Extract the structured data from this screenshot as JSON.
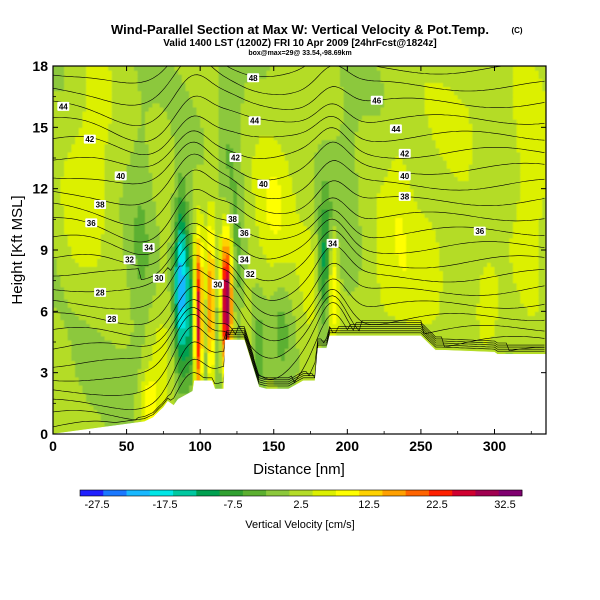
{
  "chart_data": {
    "type": "heatmap",
    "title": "Wind-Parallel Section at Max W: Vertical Velocity & Pot.Temp.",
    "title_mark": "(C)",
    "subtitle": "Valid 1400 LST (1200Z) FRI 10 Apr 2009 [24hrFcst@1824z]",
    "location_line": "box@max=29@ 33.54,-98.69km",
    "xlabel": "Distance [nm]",
    "ylabel": "Height [Kft MSL]",
    "xlim": [
      0,
      335
    ],
    "ylim": [
      0,
      18
    ],
    "x_ticks": [
      0,
      50,
      100,
      150,
      200,
      250,
      300
    ],
    "y_ticks": [
      0,
      3,
      6,
      9,
      12,
      15,
      18
    ],
    "colorbar": {
      "label": "Vertical Velocity [cm/s]",
      "range": [
        -30,
        35
      ],
      "tick_values": [
        -27.5,
        -17.5,
        -7.5,
        2.5,
        12.5,
        22.5,
        32.5
      ],
      "tick_labels": [
        "-27.5",
        "-17.5",
        "-7.5",
        "2.5",
        "12.5",
        "22.5",
        "32.5"
      ],
      "colors": [
        "#2020ff",
        "#1a78ff",
        "#18b8ff",
        "#00e6e6",
        "#00c8a0",
        "#00a050",
        "#30a030",
        "#5cb030",
        "#8cc83c",
        "#b4dc28",
        "#dcf000",
        "#ffff00",
        "#ffd200",
        "#ffa000",
        "#ff6400",
        "#ff2000",
        "#d00030",
        "#a00050",
        "#800070"
      ]
    },
    "terrain": {
      "x": [
        0,
        62,
        68,
        72,
        75,
        78,
        82,
        85,
        90,
        95,
        96,
        108,
        110,
        116,
        117,
        125,
        130,
        140,
        145,
        160,
        170,
        178,
        180,
        186,
        188,
        195,
        205,
        250,
        260,
        265,
        300,
        302,
        335
      ],
      "y": [
        0,
        0.6,
        0.8,
        1.1,
        1.3,
        1.6,
        1.4,
        1.7,
        1.9,
        2.1,
        2.6,
        2.6,
        2.2,
        2.2,
        4.6,
        4.6,
        4.6,
        2.3,
        2.2,
        2.2,
        2.6,
        2.6,
        4.2,
        4.2,
        4.8,
        4.8,
        4.8,
        4.8,
        4.1,
        4.1,
        4.0,
        3.9,
        3.9
      ]
    },
    "w_features": [
      {
        "x": 87,
        "y": 7.3,
        "sx": 3.4,
        "sy": 3.0,
        "w": -24
      },
      {
        "x": 94,
        "y": 6.0,
        "sx": 2.4,
        "sy": 2.4,
        "w": -14
      },
      {
        "x": 99,
        "y": 5.6,
        "sx": 2.6,
        "sy": 2.6,
        "w": 30
      },
      {
        "x": 103,
        "y": 5.4,
        "sx": 2.2,
        "sy": 2.4,
        "w": -13
      },
      {
        "x": 107,
        "y": 5.8,
        "sx": 2.4,
        "sy": 2.6,
        "w": 18
      },
      {
        "x": 112,
        "y": 5.8,
        "sx": 2.2,
        "sy": 2.6,
        "w": -10
      },
      {
        "x": 118,
        "y": 6.6,
        "sx": 3.0,
        "sy": 2.4,
        "w": 32
      },
      {
        "x": 124,
        "y": 6.8,
        "sx": 2.4,
        "sy": 2.4,
        "w": -6
      },
      {
        "x": 185,
        "y": 8.3,
        "sx": 3.6,
        "sy": 2.4,
        "w": -14
      },
      {
        "x": 190,
        "y": 7.4,
        "sx": 2.6,
        "sy": 2.0,
        "w": 12
      },
      {
        "x": 175,
        "y": 7.0,
        "sx": 6.0,
        "sy": 3.4,
        "w": 3
      },
      {
        "x": 150,
        "y": 11.0,
        "sx": 10.0,
        "sy": 3.0,
        "w": 6
      },
      {
        "x": 28,
        "y": 14.0,
        "sx": 10.0,
        "sy": 3.5,
        "w": 5
      },
      {
        "x": 15,
        "y": 11.0,
        "sx": 7.0,
        "sy": 2.5,
        "w": 3
      },
      {
        "x": 250,
        "y": 9.5,
        "sx": 25.0,
        "sy": 2.5,
        "w": 4
      },
      {
        "x": 230,
        "y": 6.5,
        "sx": 15.0,
        "sy": 1.5,
        "w": 3
      },
      {
        "x": 280,
        "y": 16.0,
        "sx": 25.0,
        "sy": 2.0,
        "w": 3
      },
      {
        "x": 325,
        "y": 12.0,
        "sx": 10.0,
        "sy": 4.0,
        "w": 5
      },
      {
        "x": 120,
        "y": 14.0,
        "sx": 6.0,
        "sy": 5.0,
        "w": -5
      },
      {
        "x": 110,
        "y": 10.0,
        "sx": 4.0,
        "sy": 3.0,
        "w": 4
      },
      {
        "x": 75,
        "y": 4.5,
        "sx": 8.0,
        "sy": 2.0,
        "w": 4
      },
      {
        "x": 65,
        "y": 1.5,
        "sx": 5.0,
        "sy": 1.2,
        "w": 9
      },
      {
        "x": 155,
        "y": 5.0,
        "sx": 5.0,
        "sy": 2.0,
        "w": -5
      },
      {
        "x": 140,
        "y": 4.0,
        "sx": 3.5,
        "sy": 1.8,
        "w": -7
      },
      {
        "x": 60,
        "y": 9.0,
        "sx": 6.0,
        "sy": 5.0,
        "w": -4
      },
      {
        "x": 200,
        "y": 12.0,
        "sx": 8.0,
        "sy": 4.0,
        "w": -3
      },
      {
        "x": 235,
        "y": 12.5,
        "sx": 6.0,
        "sy": 2.5,
        "w": 3
      },
      {
        "x": 295,
        "y": 6.0,
        "sx": 6.0,
        "sy": 1.5,
        "w": 6
      },
      {
        "x": 45,
        "y": 2.8,
        "sx": 20.0,
        "sy": 1.2,
        "w": -2
      }
    ],
    "contour_labels": [
      {
        "text": "44",
        "x": 7,
        "y": 16.0
      },
      {
        "text": "48",
        "x": 136,
        "y": 17.4
      },
      {
        "text": "46",
        "x": 220,
        "y": 16.3
      },
      {
        "text": "44",
        "x": 137,
        "y": 15.3
      },
      {
        "text": "44",
        "x": 233,
        "y": 14.9
      },
      {
        "text": "42",
        "x": 25,
        "y": 14.4
      },
      {
        "text": "42",
        "x": 124,
        "y": 13.5
      },
      {
        "text": "42",
        "x": 239,
        "y": 13.7
      },
      {
        "text": "40",
        "x": 46,
        "y": 12.6
      },
      {
        "text": "40",
        "x": 143,
        "y": 12.2
      },
      {
        "text": "40",
        "x": 239,
        "y": 12.6
      },
      {
        "text": "38",
        "x": 32,
        "y": 11.2
      },
      {
        "text": "38",
        "x": 122,
        "y": 10.5
      },
      {
        "text": "38",
        "x": 239,
        "y": 11.6
      },
      {
        "text": "36",
        "x": 26,
        "y": 10.3
      },
      {
        "text": "36",
        "x": 130,
        "y": 9.8
      },
      {
        "text": "36",
        "x": 290,
        "y": 9.9
      },
      {
        "text": "34",
        "x": 65,
        "y": 9.1
      },
      {
        "text": "34",
        "x": 130,
        "y": 8.5
      },
      {
        "text": "34",
        "x": 190,
        "y": 9.3
      },
      {
        "text": "32",
        "x": 52,
        "y": 8.5
      },
      {
        "text": "32",
        "x": 134,
        "y": 7.8
      },
      {
        "text": "30",
        "x": 72,
        "y": 7.6
      },
      {
        "text": "30",
        "x": 112,
        "y": 7.3
      },
      {
        "text": "28",
        "x": 32,
        "y": 6.9
      },
      {
        "text": "28",
        "x": 40,
        "y": 5.6
      }
    ]
  }
}
